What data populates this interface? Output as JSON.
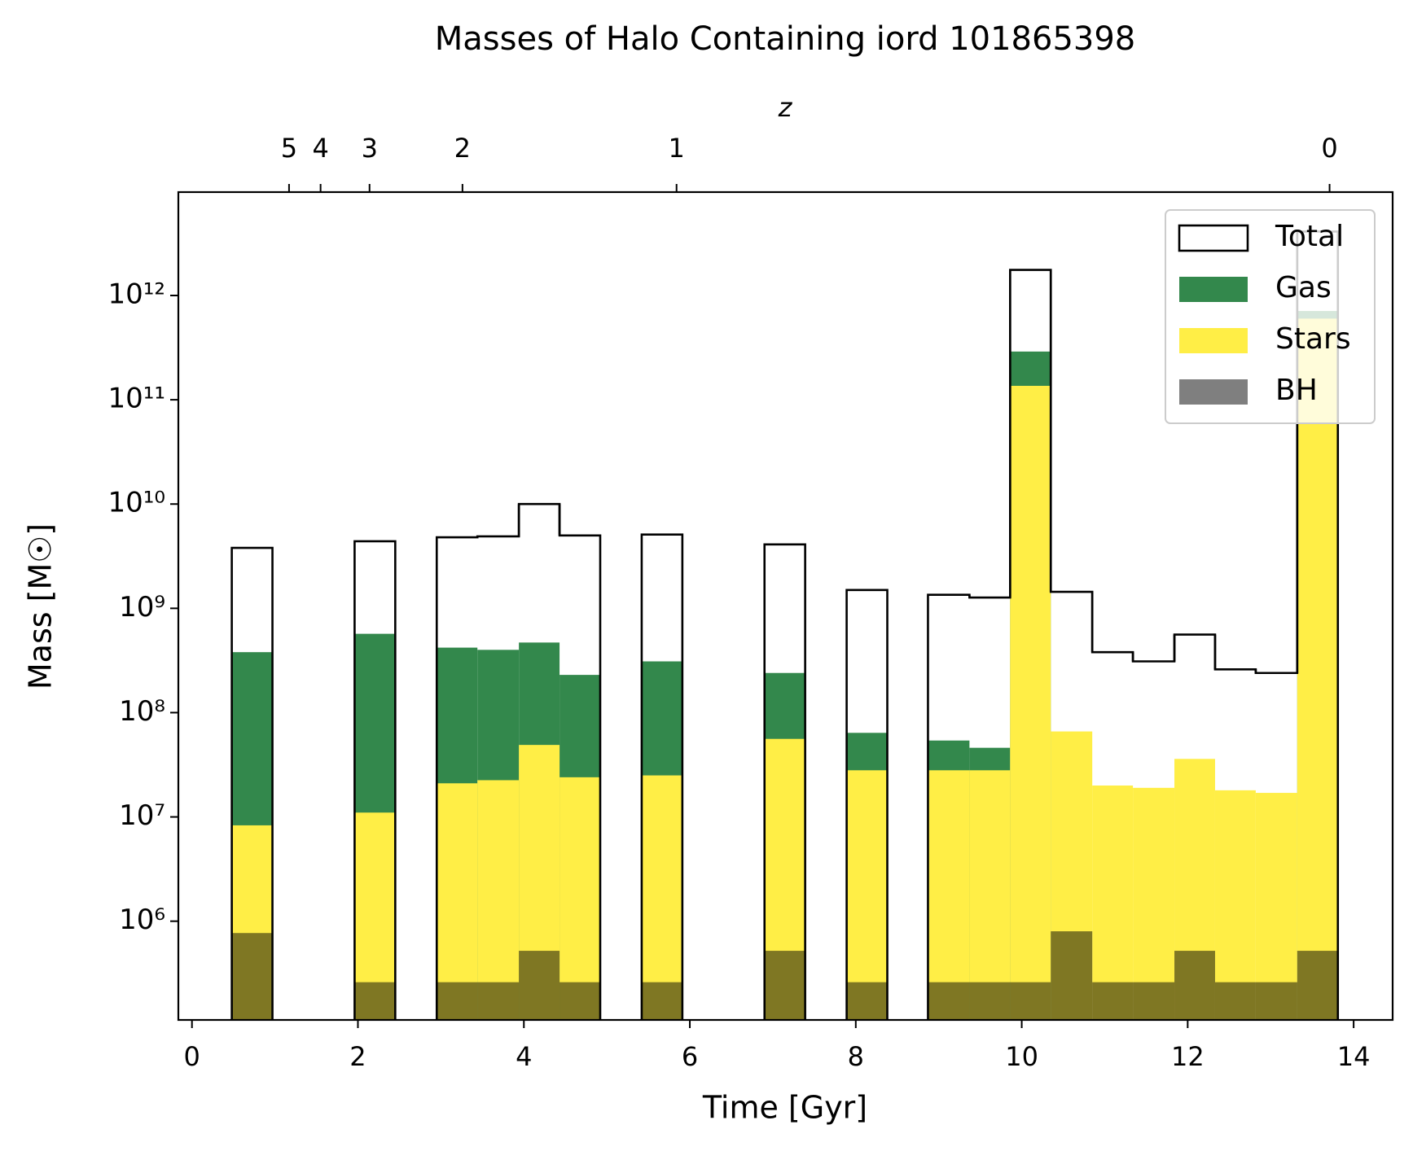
{
  "chart_data": {
    "type": "histogram",
    "title": "Masses of Halo Containing iord 101865398",
    "x_label": "Time [Gyr]",
    "y_label": "Mass [M☉]",
    "x2_label": "z",
    "log_y": true,
    "legend": "upper right",
    "bins": [
      0.48,
      0.97,
      1.47,
      1.96,
      2.45,
      2.95,
      3.44,
      3.94,
      4.43,
      4.92,
      5.42,
      5.91,
      6.4,
      6.9,
      7.39,
      7.89,
      8.38,
      8.87,
      9.37,
      9.86,
      10.35,
      10.85,
      11.34,
      11.84,
      12.33,
      12.82,
      13.32,
      13.81
    ],
    "series": [
      {
        "name": "Total",
        "style": "step",
        "color": "#000000",
        "values": [
          3800000000.0,
          null,
          null,
          4400000000.0,
          null,
          4800000000.0,
          4900000000.0,
          10000000000.0,
          5000000000.0,
          null,
          5100000000.0,
          null,
          null,
          4100000000.0,
          null,
          1500000000.0,
          null,
          1350000000.0,
          1270000000.0,
          1760000000000.0,
          1440000000.0,
          380000000.0,
          310000000.0,
          560000000.0,
          260000000.0,
          240000000.0,
          4100000000000.0
        ]
      },
      {
        "name": "Gas",
        "style": "fill",
        "color": "#33884c",
        "values": [
          380000000.0,
          null,
          null,
          570000000.0,
          null,
          420000000.0,
          400000000.0,
          470000000.0,
          230000000.0,
          null,
          310000000.0,
          null,
          null,
          240000000.0,
          null,
          64000000.0,
          null,
          54000000.0,
          46000000.0,
          290000000000.0,
          null,
          null,
          null,
          null,
          null,
          null,
          710000000000.0
        ]
      },
      {
        "name": "Stars",
        "style": "fill",
        "color": "#ffee46",
        "values": [
          8300000.0,
          null,
          null,
          11000000.0,
          null,
          21000000.0,
          22500000.0,
          49000000.0,
          24000000.0,
          null,
          25000000.0,
          null,
          null,
          56000000.0,
          null,
          28000000.0,
          null,
          28000000.0,
          28000000.0,
          136000000000.0,
          66000000.0,
          20000000.0,
          19000000.0,
          36000000.0,
          18000000.0,
          17000000.0,
          600000000000.0
        ]
      },
      {
        "name": "BH",
        "style": "fill",
        "color": "#000000",
        "alpha": 0.5,
        "values": [
          770000.0,
          null,
          null,
          260000.0,
          null,
          260000.0,
          260000.0,
          520000.0,
          260000.0,
          null,
          260000.0,
          null,
          null,
          520000.0,
          null,
          260000.0,
          null,
          260000.0,
          260000.0,
          260000.0,
          800000.0,
          260000.0,
          260000.0,
          520000.0,
          260000.0,
          260000.0,
          520000.0
        ]
      }
    ],
    "xlim": [
      -0.164,
      14.47
    ],
    "xticks": [
      0,
      2,
      4,
      6,
      8,
      10,
      12,
      14
    ],
    "ylim": [
      113000.0,
      9800000000000.0
    ],
    "yticks": [
      {
        "value": 1000000.0,
        "label": "10⁶"
      },
      {
        "value": 10000000.0,
        "label": "10⁷"
      },
      {
        "value": 100000000.0,
        "label": "10⁸"
      },
      {
        "value": 1000000000.0,
        "label": "10⁹"
      },
      {
        "value": 10000000000.0,
        "label": "10¹⁰"
      },
      {
        "value": 100000000000.0,
        "label": "10¹¹"
      },
      {
        "value": 1000000000000.0,
        "label": "10¹²"
      }
    ],
    "x2ticks": [
      {
        "value": 1.17,
        "label": "5"
      },
      {
        "value": 1.55,
        "label": "4"
      },
      {
        "value": 2.14,
        "label": "3"
      },
      {
        "value": 3.26,
        "label": "2"
      },
      {
        "value": 5.84,
        "label": "1"
      },
      {
        "value": 13.71,
        "label": "0"
      }
    ]
  }
}
